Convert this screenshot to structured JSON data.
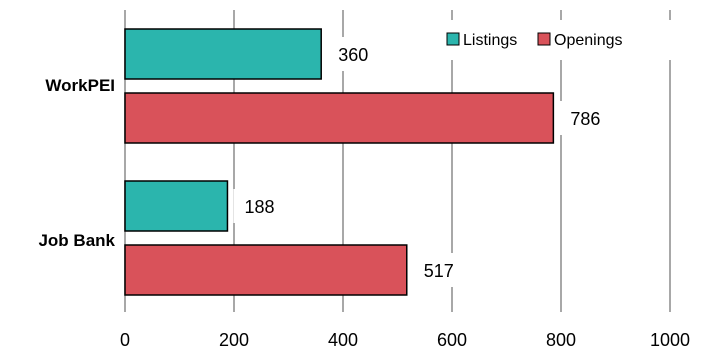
{
  "chart_data": {
    "type": "bar",
    "orientation": "horizontal",
    "categories": [
      "WorkPEI",
      "Job Bank"
    ],
    "series": [
      {
        "name": "Listings",
        "values": [
          360,
          188
        ],
        "color": "#2bb5ad"
      },
      {
        "name": "Openings",
        "values": [
          786,
          517
        ],
        "color": "#d9525a"
      }
    ],
    "xticks": [
      "0",
      "200",
      "400",
      "600",
      "800",
      "1000"
    ],
    "xlim": [
      0,
      1000
    ],
    "grid": "vertical",
    "legend": "top-right",
    "title": "",
    "xlabel": "",
    "ylabel": ""
  }
}
